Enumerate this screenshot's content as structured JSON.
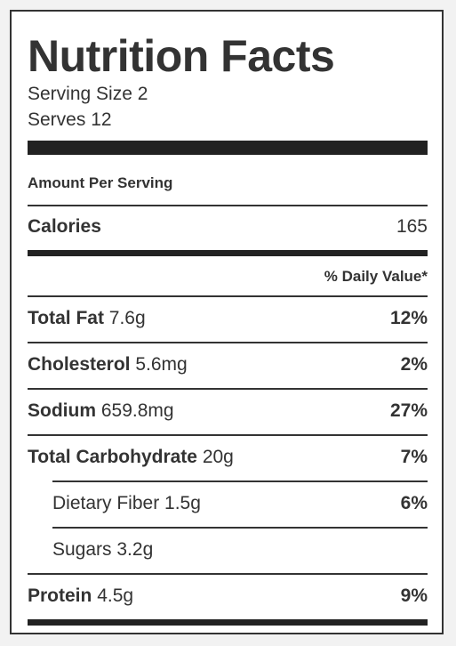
{
  "label": {
    "title": "Nutrition Facts",
    "serving_size": "Serving Size 2",
    "serves": "Serves 12",
    "amount_per_serving": "Amount Per Serving",
    "calories": {
      "name": "Calories",
      "value": "165"
    },
    "daily_value_header": "% Daily Value*",
    "nutrients": [
      {
        "name": "Total Fat",
        "amount": "7.6g",
        "percent": "12%"
      },
      {
        "name": "Cholesterol",
        "amount": "5.6mg",
        "percent": "2%"
      },
      {
        "name": "Sodium",
        "amount": "659.8mg",
        "percent": "27%"
      },
      {
        "name": "Total Carbohydrate",
        "amount": "20g",
        "percent": "7%"
      }
    ],
    "sub_nutrients": [
      {
        "name": "Dietary Fiber",
        "amount": "1.5g",
        "percent": "6%"
      },
      {
        "name": "Sugars",
        "amount": "3.2g",
        "percent": ""
      }
    ],
    "protein": {
      "name": "Protein",
      "amount": "4.5g",
      "percent": "9%"
    }
  },
  "colors": {
    "text": "#333333",
    "bars": "#222222",
    "background": "#ffffff"
  }
}
